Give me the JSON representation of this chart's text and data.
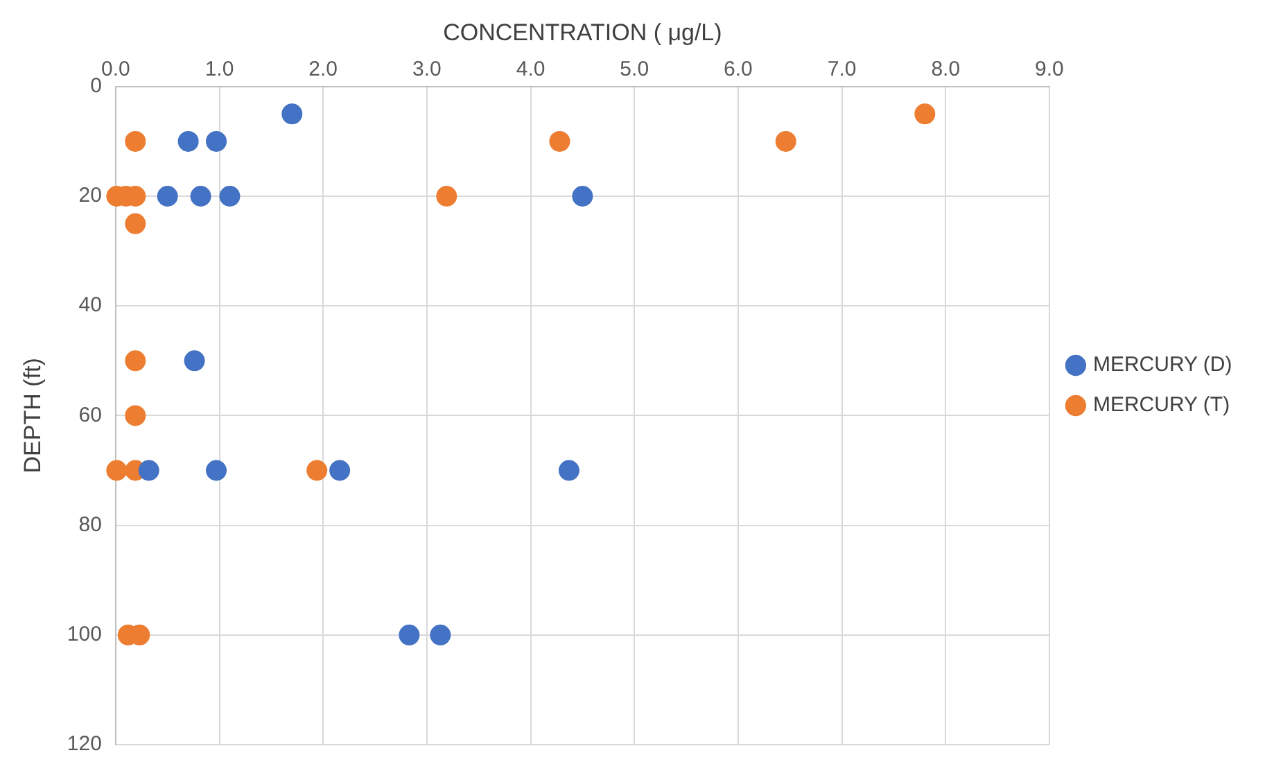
{
  "chart_data": {
    "type": "scatter",
    "xlabel": "CONCENTRATION ( μg/L)",
    "ylabel": "DEPTH (ft)",
    "xlim": [
      0,
      9
    ],
    "xticks": [
      {
        "value": 0,
        "label": "0.0"
      },
      {
        "value": 1,
        "label": "1.0"
      },
      {
        "value": 2,
        "label": "2.0"
      },
      {
        "value": 3,
        "label": "3.0"
      },
      {
        "value": 4,
        "label": "4.0"
      },
      {
        "value": 5,
        "label": "5.0"
      },
      {
        "value": 6,
        "label": "6.0"
      },
      {
        "value": 7,
        "label": "7.0"
      },
      {
        "value": 8,
        "label": "8.0"
      },
      {
        "value": 9,
        "label": "9.0"
      }
    ],
    "ylim": [
      120,
      0
    ],
    "yticks": [
      0,
      20,
      40,
      60,
      80,
      100,
      120
    ],
    "series": [
      {
        "name": "MERCURY (D)",
        "color": "#4472c4",
        "x": [
          1.7,
          0.7,
          0.97,
          0.5,
          0.82,
          1.1,
          4.5,
          0.76,
          0.32,
          0.97,
          2.16,
          4.37,
          2.83,
          3.13
        ],
        "values": [
          5,
          10,
          10,
          20,
          20,
          20,
          20,
          50,
          70,
          70,
          70,
          70,
          100,
          100
        ]
      },
      {
        "name": "MERCURY (T)",
        "color": "#ed7d31",
        "x": [
          7.8,
          0.19,
          4.28,
          6.46,
          0.01,
          0.1,
          0.19,
          3.19,
          0.19,
          0.19,
          0.19,
          0.01,
          0.19,
          1.94,
          0.12,
          0.23
        ],
        "values": [
          5,
          10,
          10,
          10,
          20,
          20,
          20,
          20,
          25,
          50,
          60,
          70,
          70,
          70,
          100,
          100
        ]
      }
    ],
    "grid": true,
    "legend": "right",
    "marker": "circle"
  }
}
